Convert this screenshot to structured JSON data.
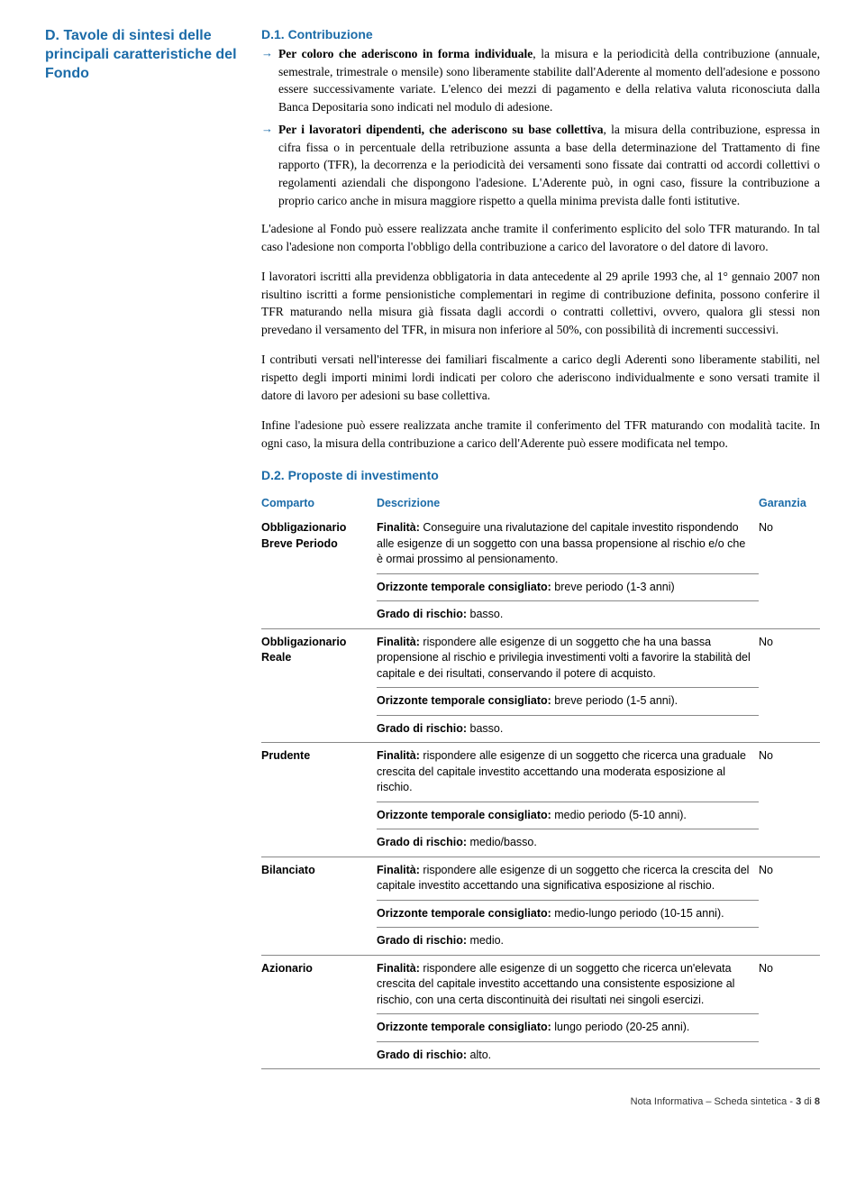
{
  "leftTitle": "D. Tavole di sintesi delle principali caratteristiche del Fondo",
  "d1": {
    "heading": "D.1. Contribuzione",
    "bullet1_prefix": "Per coloro che aderiscono in forma individuale",
    "bullet1_rest": ", la misura e la periodicità della contribuzione (annuale, semestrale, trimestrale o mensile) sono liberamente stabilite dall'Aderente al momento dell'adesione e possono essere successivamente variate. L'elenco dei mezzi di pagamento e della relativa valuta riconosciuta dalla Banca Depositaria sono indicati nel modulo di adesione.",
    "bullet2_prefix": "Per i lavoratori dipendenti, che aderiscono su base collettiva",
    "bullet2_rest": ", la misura della contribuzione, espressa in cifra fissa o in percentuale della retribuzione assunta a base della determinazione del Trattamento di fine rapporto (TFR), la decorrenza e la periodicità dei versamenti sono fissate dai contratti od accordi collettivi o regolamenti aziendali che dispongono l'adesione. L'Aderente può, in ogni caso, fissure la contribuzione a proprio carico anche in misura maggiore rispetto a quella minima prevista dalle fonti istitutive.",
    "para1": "L'adesione al Fondo può essere realizzata anche tramite il conferimento esplicito del solo TFR maturando. In tal caso l'adesione non comporta l'obbligo della contribuzione a carico del lavoratore o del datore di lavoro.",
    "para2": "I lavoratori iscritti alla previdenza obbligatoria in data antecedente al 29 aprile 1993 che, al 1° gennaio 2007 non risultino iscritti a forme pensionistiche complementari in regime di contribuzione definita, possono conferire il TFR maturando nella misura già fissata dagli accordi o contratti collettivi, ovvero, qualora gli stessi non prevedano il versamento del TFR, in misura non inferiore al 50%, con possibilità di incrementi successivi.",
    "para3": "I contributi versati nell'interesse dei familiari fiscalmente a carico degli Aderenti sono liberamente stabiliti, nel rispetto degli importi minimi lordi indicati per coloro che aderiscono individualmente e sono versati tramite il datore di lavoro per adesioni su base collettiva.",
    "para4": "Infine l'adesione può essere realizzata anche tramite il conferimento del TFR maturando con modalità tacite. In ogni caso, la misura della contribuzione a carico dell'Aderente può essere modificata nel tempo."
  },
  "d2": {
    "heading": "D.2. Proposte di investimento",
    "headers": {
      "comparto": "Comparto",
      "descrizione": "Descrizione",
      "garanzia": "Garanzia"
    },
    "rows": [
      {
        "comparto": "Obbligazionario Breve Periodo",
        "finalita": "Conseguire una rivalutazione del capitale investito rispondendo alle esigenze di un soggetto con una bassa propensione al rischio e/o che è ormai prossimo al pensionamento.",
        "orizzonte": "breve periodo (1-3 anni)",
        "rischio": "basso.",
        "garanzia": "No"
      },
      {
        "comparto": "Obbligazionario Reale",
        "finalita": "rispondere alle esigenze di un soggetto che ha una bassa propensione al rischio e privilegia investimenti volti a favorire la stabilità del capitale e dei risultati, conservando il potere di acquisto.",
        "orizzonte": "breve periodo (1-5 anni).",
        "rischio": "basso.",
        "garanzia": "No"
      },
      {
        "comparto": "Prudente",
        "finalita": "rispondere alle esigenze di un soggetto che ricerca una graduale crescita del capitale investito accettando una moderata esposizione al rischio.",
        "orizzonte": "medio periodo (5-10 anni).",
        "rischio": "medio/basso.",
        "garanzia": "No"
      },
      {
        "comparto": "Bilanciato",
        "finalita": "rispondere alle esigenze di un soggetto che ricerca la crescita del capitale investito accettando una significativa esposizione al rischio.",
        "orizzonte": "medio-lungo periodo (10-15 anni).",
        "rischio": "medio.",
        "garanzia": "No"
      },
      {
        "comparto": "Azionario",
        "finalita": "rispondere alle esigenze di un soggetto che ricerca un'elevata crescita del capitale investito accettando una consistente esposizione al rischio, con una certa discontinuità dei risultati nei singoli esercizi.",
        "orizzonte": "lungo periodo (20-25 anni).",
        "rischio": "alto.",
        "garanzia": "No"
      }
    ],
    "labels": {
      "finalita": "Finalità:",
      "orizzonte": "Orizzonte temporale consigliato:",
      "rischio": "Grado di rischio:"
    }
  },
  "footer": {
    "left": "Nota Informativa – Scheda sintetica -",
    "page": "3",
    "of": "di",
    "total": "8"
  }
}
